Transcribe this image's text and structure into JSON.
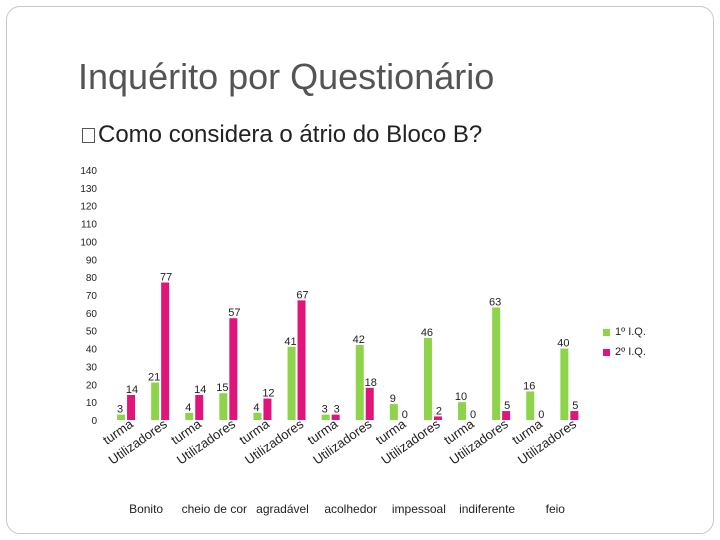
{
  "slide": {
    "title": "Inquérito por Questionário",
    "subtitle": "Como considera o átrio do Bloco B?"
  },
  "colors": {
    "series1": "#8ed44a",
    "series2": "#e0147a",
    "axis_text": "#222222"
  },
  "chart_data": {
    "type": "bar",
    "categories": [
      "Bonito turma",
      "Bonito Utilizadores",
      "cheio de cor turma",
      "cheio de cor Utilizadores",
      "agradável turma",
      "agradável Utilizadores",
      "acolhedor turma",
      "acolhedor Utilizadores",
      "impessoal turma",
      "impessoal Utilizadores",
      "indiferente turma",
      "indiferente Utilizadores",
      "feio turma",
      "feio Utilizadores"
    ],
    "category_tick_labels": [
      "turma",
      "Utilizadores",
      "turma",
      "Utilizadores",
      "turma",
      "Utilizadores",
      "turma",
      "Utilizadores",
      "turma",
      "Utilizadores",
      "turma",
      "Utilizadores",
      "turma",
      "Utilizadores"
    ],
    "group_labels": [
      "Bonito",
      "cheio de cor",
      "agradável",
      "acolhedor",
      "impessoal",
      "indiferente",
      "feio"
    ],
    "series": [
      {
        "name": "1º I.Q.",
        "values": [
          3,
          21,
          4,
          15,
          4,
          41,
          3,
          42,
          9,
          46,
          10,
          63,
          16,
          40
        ]
      },
      {
        "name": "2º I.Q.",
        "values": [
          14,
          77,
          14,
          57,
          12,
          67,
          3,
          18,
          0,
          2,
          0,
          5,
          0,
          5
        ]
      }
    ],
    "data_labels": [
      [
        "3",
        "21",
        "4",
        "15",
        "4",
        "41",
        "3",
        "42",
        "9",
        "46",
        "10",
        "63",
        "16",
        "40"
      ],
      [
        "14",
        "77",
        "14",
        "57",
        "12",
        "67",
        "3",
        "18",
        "0",
        "2",
        "0",
        "5",
        "0",
        "5"
      ]
    ],
    "yticks": [
      "0",
      "10",
      "20",
      "30",
      "40",
      "50",
      "60",
      "70",
      "80",
      "90",
      "100",
      "110",
      "120",
      "130",
      "140"
    ],
    "ylim": [
      0,
      140
    ],
    "grid": false,
    "legend_position": "right"
  }
}
